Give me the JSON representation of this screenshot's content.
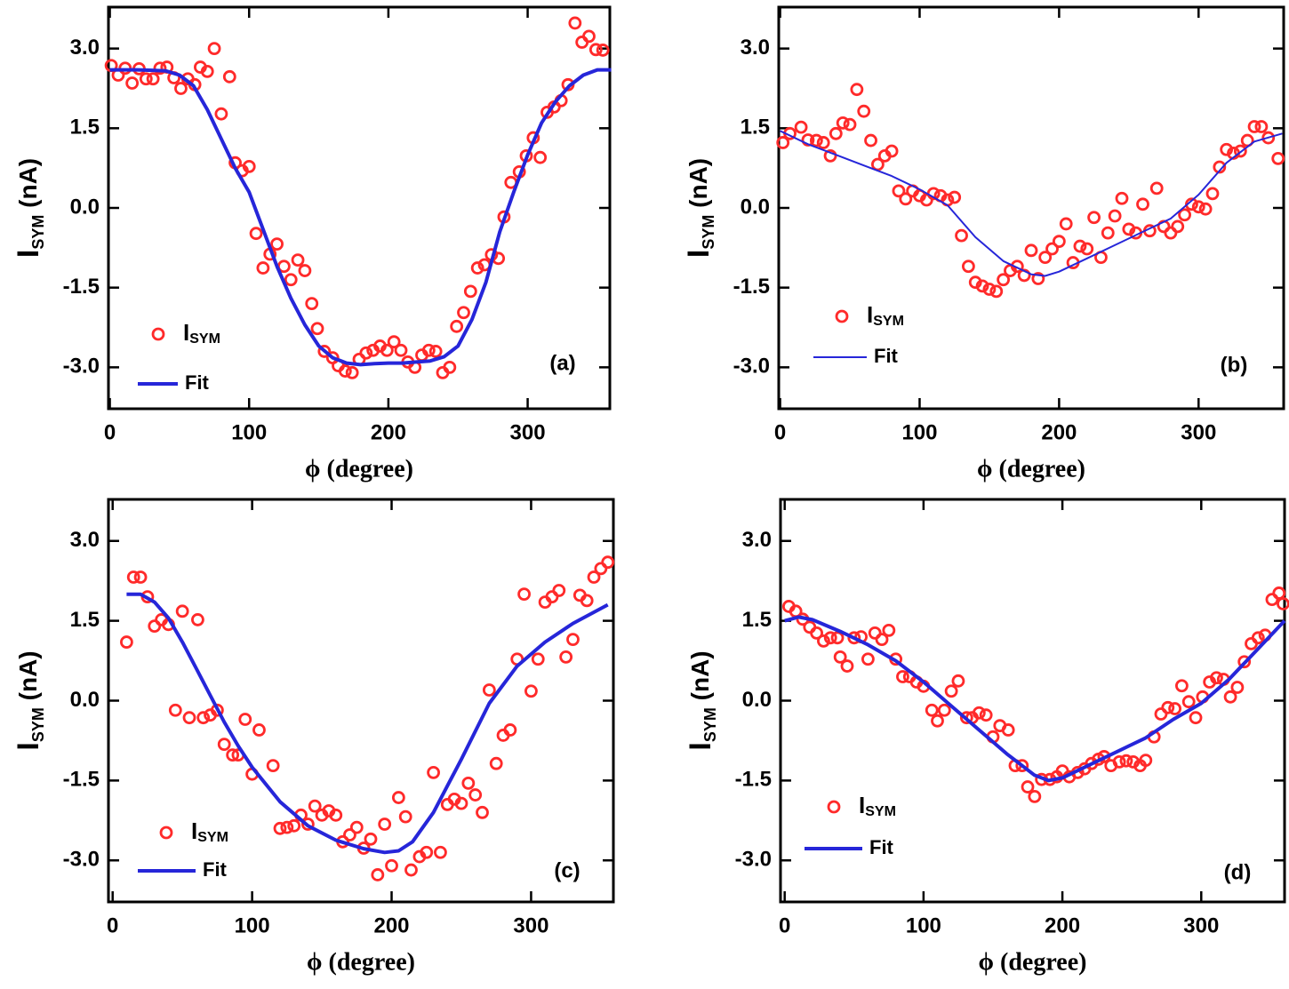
{
  "chart_data": [
    {
      "type": "scatter",
      "title": "(a)",
      "xlabel": "ϕ (degree)",
      "ylabel": [
        "I",
        "SYM",
        " (nA)"
      ],
      "xlim": [
        -1,
        359
      ],
      "ylim": [
        -3.78,
        3.78
      ],
      "xticks": [
        0,
        100,
        200,
        300
      ],
      "yticks": [
        {
          "value": -3,
          "label": "-3.0"
        },
        -1.5,
        {
          "value": 0,
          "label": "0.0"
        },
        1.5,
        {
          "value": 3,
          "label": "3.0"
        }
      ],
      "series": [
        {
          "name": "I",
          "subscript": "SYM",
          "mode": "markers",
          "color": "#ff2a2a",
          "x": [
            1,
            6,
            11,
            16,
            21,
            26,
            31,
            36,
            41,
            46,
            51,
            56,
            61,
            65,
            70,
            75,
            80,
            86,
            90,
            95,
            100,
            105,
            110,
            115,
            120,
            125,
            130,
            135,
            140,
            145,
            149,
            154,
            160,
            164,
            169,
            174,
            179,
            184,
            189,
            194,
            199,
            204,
            209,
            214,
            219,
            224,
            229,
            234,
            239,
            244,
            249,
            254,
            259,
            264,
            269,
            274,
            279,
            283,
            288,
            294,
            299,
            304,
            309,
            314,
            319,
            324,
            329,
            334,
            339,
            344,
            349,
            354
          ],
          "values": [
            2.68,
            2.5,
            2.63,
            2.35,
            2.62,
            2.43,
            2.43,
            2.63,
            2.65,
            2.45,
            2.25,
            2.43,
            2.32,
            2.65,
            2.57,
            3.0,
            1.77,
            2.47,
            0.85,
            0.7,
            0.78,
            -0.48,
            -1.13,
            -0.87,
            -0.68,
            -1.1,
            -1.35,
            -0.98,
            -1.18,
            -1.8,
            -2.27,
            -2.7,
            -2.82,
            -2.97,
            -3.07,
            -3.1,
            -2.85,
            -2.73,
            -2.68,
            -2.6,
            -2.68,
            -2.52,
            -2.68,
            -2.9,
            -3.0,
            -2.77,
            -2.68,
            -2.7,
            -3.1,
            -3.0,
            -2.23,
            -1.97,
            -1.57,
            -1.13,
            -1.07,
            -0.88,
            -0.95,
            -0.17,
            0.48,
            0.68,
            0.98,
            1.32,
            0.95,
            1.8,
            1.9,
            2.02,
            2.32,
            3.48,
            3.12,
            3.23,
            2.98,
            2.97
          ]
        },
        {
          "name": "Fit",
          "mode": "line",
          "color": "#2626d9",
          "x": [
            0,
            10,
            20,
            30,
            40,
            50,
            60,
            70,
            80,
            90,
            100,
            110,
            120,
            130,
            140,
            150,
            160,
            170,
            180,
            190,
            200,
            210,
            220,
            230,
            240,
            250,
            260,
            270,
            280,
            290,
            300,
            310,
            320,
            330,
            340,
            350,
            360
          ],
          "values": [
            2.6,
            2.6,
            2.6,
            2.59,
            2.58,
            2.5,
            2.3,
            1.85,
            1.3,
            0.75,
            0.3,
            -0.4,
            -1.1,
            -1.7,
            -2.2,
            -2.6,
            -2.82,
            -2.92,
            -2.95,
            -2.93,
            -2.92,
            -2.92,
            -2.9,
            -2.88,
            -2.8,
            -2.6,
            -2.1,
            -1.4,
            -0.45,
            0.3,
            1.0,
            1.6,
            2.0,
            2.3,
            2.5,
            2.6,
            2.6
          ]
        }
      ]
    },
    {
      "type": "scatter",
      "title": "(b)",
      "xlabel": "ϕ (degree)",
      "ylabel": [
        "I",
        "SYM",
        " (nA)"
      ],
      "xlim": [
        -1,
        361
      ],
      "ylim": [
        -3.78,
        3.78
      ],
      "xticks": [
        0,
        100,
        200,
        300
      ],
      "yticks": [
        {
          "value": -3,
          "label": "-3.0"
        },
        -1.5,
        {
          "value": 0,
          "label": "0.0"
        },
        1.5,
        {
          "value": 3,
          "label": "3.0"
        }
      ],
      "series": [
        {
          "name": "I",
          "subscript": "SYM",
          "mode": "markers",
          "color": "#ff2a2a",
          "x": [
            2,
            7,
            15,
            20,
            26,
            31,
            36,
            40,
            45,
            50,
            55,
            60,
            65,
            70,
            75,
            80,
            85,
            90,
            95,
            100,
            105,
            110,
            115,
            120,
            125,
            130,
            135,
            140,
            145,
            150,
            155,
            160,
            165,
            170,
            175,
            180,
            185,
            190,
            195,
            200,
            205,
            210,
            215,
            220,
            225,
            230,
            235,
            240,
            245,
            250,
            255,
            260,
            265,
            270,
            275,
            280,
            285,
            290,
            295,
            300,
            305,
            310,
            315,
            320,
            325,
            330,
            335,
            340,
            345,
            350,
            357
          ],
          "values": [
            1.23,
            1.4,
            1.52,
            1.28,
            1.27,
            1.23,
            0.98,
            1.4,
            1.6,
            1.57,
            2.23,
            1.82,
            1.27,
            0.82,
            0.98,
            1.07,
            0.32,
            0.17,
            0.32,
            0.23,
            0.15,
            0.27,
            0.23,
            0.15,
            0.2,
            -0.52,
            -1.1,
            -1.4,
            -1.47,
            -1.53,
            -1.57,
            -1.35,
            -1.18,
            -1.1,
            -1.27,
            -0.8,
            -1.33,
            -0.93,
            -0.77,
            -0.63,
            -0.3,
            -1.03,
            -0.72,
            -0.77,
            -0.18,
            -0.93,
            -0.47,
            -0.15,
            0.18,
            -0.4,
            -0.47,
            0.07,
            -0.43,
            0.37,
            -0.35,
            -0.47,
            -0.35,
            -0.13,
            0.07,
            0.02,
            -0.02,
            0.27,
            0.77,
            1.1,
            1.03,
            1.07,
            1.27,
            1.53,
            1.53,
            1.32,
            0.93
          ]
        },
        {
          "name": "Fit",
          "mode": "line",
          "color": "#2626d9",
          "x": [
            0,
            20,
            40,
            60,
            80,
            100,
            120,
            140,
            160,
            180,
            190,
            200,
            220,
            240,
            260,
            280,
            300,
            320,
            340,
            360
          ],
          "values": [
            1.45,
            1.2,
            1.0,
            0.8,
            0.6,
            0.35,
            0.05,
            -0.55,
            -1.0,
            -1.25,
            -1.28,
            -1.2,
            -0.95,
            -0.7,
            -0.45,
            -0.2,
            0.25,
            0.85,
            1.25,
            1.4
          ]
        }
      ]
    },
    {
      "type": "scatter",
      "title": "(c)",
      "xlabel": "ϕ (degree)",
      "ylabel": [
        "I",
        "SYM",
        " (nA)"
      ],
      "xlim": [
        -3,
        359
      ],
      "ylim": [
        -3.78,
        3.78
      ],
      "xticks": [
        0,
        100,
        200,
        300
      ],
      "yticks": [
        {
          "value": -3,
          "label": "-3.0"
        },
        -1.5,
        {
          "value": 0,
          "label": "0.0"
        },
        1.5,
        {
          "value": 3,
          "label": "3.0"
        }
      ],
      "series": [
        {
          "name": "I",
          "subscript": "SYM",
          "mode": "markers",
          "color": "#ff2a2a",
          "x": [
            10,
            15,
            20,
            25,
            30,
            35,
            40,
            45,
            50,
            55,
            61,
            65,
            70,
            75,
            80,
            86,
            90,
            95,
            100,
            105,
            115,
            120,
            125,
            130,
            135,
            140,
            145,
            150,
            155,
            160,
            165,
            170,
            175,
            180,
            185,
            190,
            195,
            200,
            205,
            210,
            214,
            220,
            225,
            230,
            235,
            240,
            245,
            250,
            255,
            260,
            265,
            270,
            275,
            280,
            285,
            290,
            295,
            300,
            305,
            310,
            315,
            320,
            325,
            330,
            335,
            340,
            345,
            350,
            355
          ],
          "values": [
            1.1,
            2.32,
            2.32,
            1.95,
            1.4,
            1.52,
            1.43,
            -0.18,
            1.68,
            -0.32,
            1.52,
            -0.32,
            -0.27,
            -0.18,
            -0.82,
            -1.02,
            -1.02,
            -0.35,
            -1.38,
            -0.55,
            -1.22,
            -2.4,
            -2.38,
            -2.35,
            -2.15,
            -2.32,
            -1.98,
            -2.15,
            -2.07,
            -2.15,
            -2.65,
            -2.52,
            -2.38,
            -2.77,
            -2.6,
            -3.27,
            -2.32,
            -3.1,
            -1.82,
            -2.18,
            -3.18,
            -2.93,
            -2.85,
            -1.35,
            -2.85,
            -1.95,
            -1.85,
            -1.93,
            -1.55,
            -1.77,
            -2.1,
            0.2,
            -1.18,
            -0.65,
            -0.55,
            0.78,
            2.0,
            0.18,
            0.78,
            1.85,
            1.95,
            2.07,
            0.82,
            1.15,
            1.98,
            1.88,
            2.32,
            2.48,
            2.6
          ]
        },
        {
          "name": "Fit",
          "mode": "line",
          "color": "#2626d9",
          "x": [
            10,
            20,
            30,
            40,
            50,
            60,
            70,
            80,
            90,
            100,
            120,
            140,
            160,
            180,
            195,
            205,
            215,
            230,
            250,
            270,
            290,
            310,
            330,
            355
          ],
          "values": [
            2.0,
            2.0,
            1.85,
            1.55,
            1.1,
            0.6,
            0.1,
            -0.4,
            -0.85,
            -1.25,
            -1.9,
            -2.35,
            -2.62,
            -2.78,
            -2.85,
            -2.82,
            -2.65,
            -2.1,
            -1.1,
            -0.05,
            0.65,
            1.1,
            1.45,
            1.8
          ]
        }
      ]
    },
    {
      "type": "scatter",
      "title": "(d)",
      "xlabel": "ϕ (degree)",
      "ylabel": [
        "I",
        "SYM",
        " (nA)"
      ],
      "xlim": [
        -3,
        360
      ],
      "ylim": [
        -3.78,
        3.78
      ],
      "xticks": [
        0,
        100,
        200,
        300
      ],
      "yticks": [
        {
          "value": -3,
          "label": "-3.0"
        },
        -1.5,
        {
          "value": 0,
          "label": "0.0"
        },
        1.5,
        {
          "value": 3,
          "label": "3.0"
        }
      ],
      "series": [
        {
          "name": "I",
          "subscript": "SYM",
          "mode": "markers",
          "color": "#ff2a2a",
          "x": [
            3,
            8,
            13,
            18,
            23,
            28,
            33,
            38,
            40,
            45,
            50,
            55,
            60,
            65,
            70,
            75,
            80,
            85,
            90,
            95,
            100,
            106,
            110,
            115,
            120,
            125,
            131,
            135,
            140,
            145,
            150,
            155,
            161,
            166,
            171,
            175,
            180,
            185,
            191,
            196,
            200,
            205,
            211,
            216,
            221,
            226,
            230,
            235,
            241,
            246,
            251,
            256,
            260,
            266,
            271,
            276,
            281,
            286,
            291,
            296,
            301,
            306,
            311,
            316,
            321,
            326,
            331,
            336,
            341,
            346,
            351,
            356,
            359
          ],
          "values": [
            1.77,
            1.68,
            1.53,
            1.38,
            1.27,
            1.12,
            1.18,
            1.18,
            0.82,
            0.65,
            1.18,
            1.2,
            0.78,
            1.27,
            1.15,
            1.32,
            0.78,
            0.45,
            0.45,
            0.35,
            0.27,
            -0.18,
            -0.38,
            -0.18,
            0.18,
            0.37,
            -0.32,
            -0.32,
            -0.23,
            -0.27,
            -0.68,
            -0.47,
            -0.55,
            -1.22,
            -1.22,
            -1.62,
            -1.8,
            -1.48,
            -1.48,
            -1.43,
            -1.32,
            -1.43,
            -1.35,
            -1.28,
            -1.18,
            -1.1,
            -1.05,
            -1.22,
            -1.15,
            -1.13,
            -1.15,
            -1.22,
            -1.12,
            -0.68,
            -0.25,
            -0.13,
            -0.15,
            0.28,
            -0.02,
            -0.32,
            0.07,
            0.35,
            0.43,
            0.4,
            0.07,
            0.25,
            0.73,
            1.07,
            1.18,
            1.23,
            1.9,
            2.02,
            1.82
          ]
        },
        {
          "name": "Fit",
          "mode": "line",
          "color": "#2626d9",
          "x": [
            0,
            10,
            20,
            40,
            60,
            80,
            100,
            120,
            140,
            160,
            180,
            190,
            200,
            220,
            240,
            260,
            280,
            300,
            320,
            340,
            360
          ],
          "values": [
            1.5,
            1.57,
            1.52,
            1.3,
            1.05,
            0.75,
            0.35,
            -0.1,
            -0.55,
            -1.0,
            -1.4,
            -1.5,
            -1.45,
            -1.2,
            -0.95,
            -0.7,
            -0.35,
            -0.05,
            0.4,
            0.95,
            1.5
          ]
        }
      ]
    }
  ]
}
